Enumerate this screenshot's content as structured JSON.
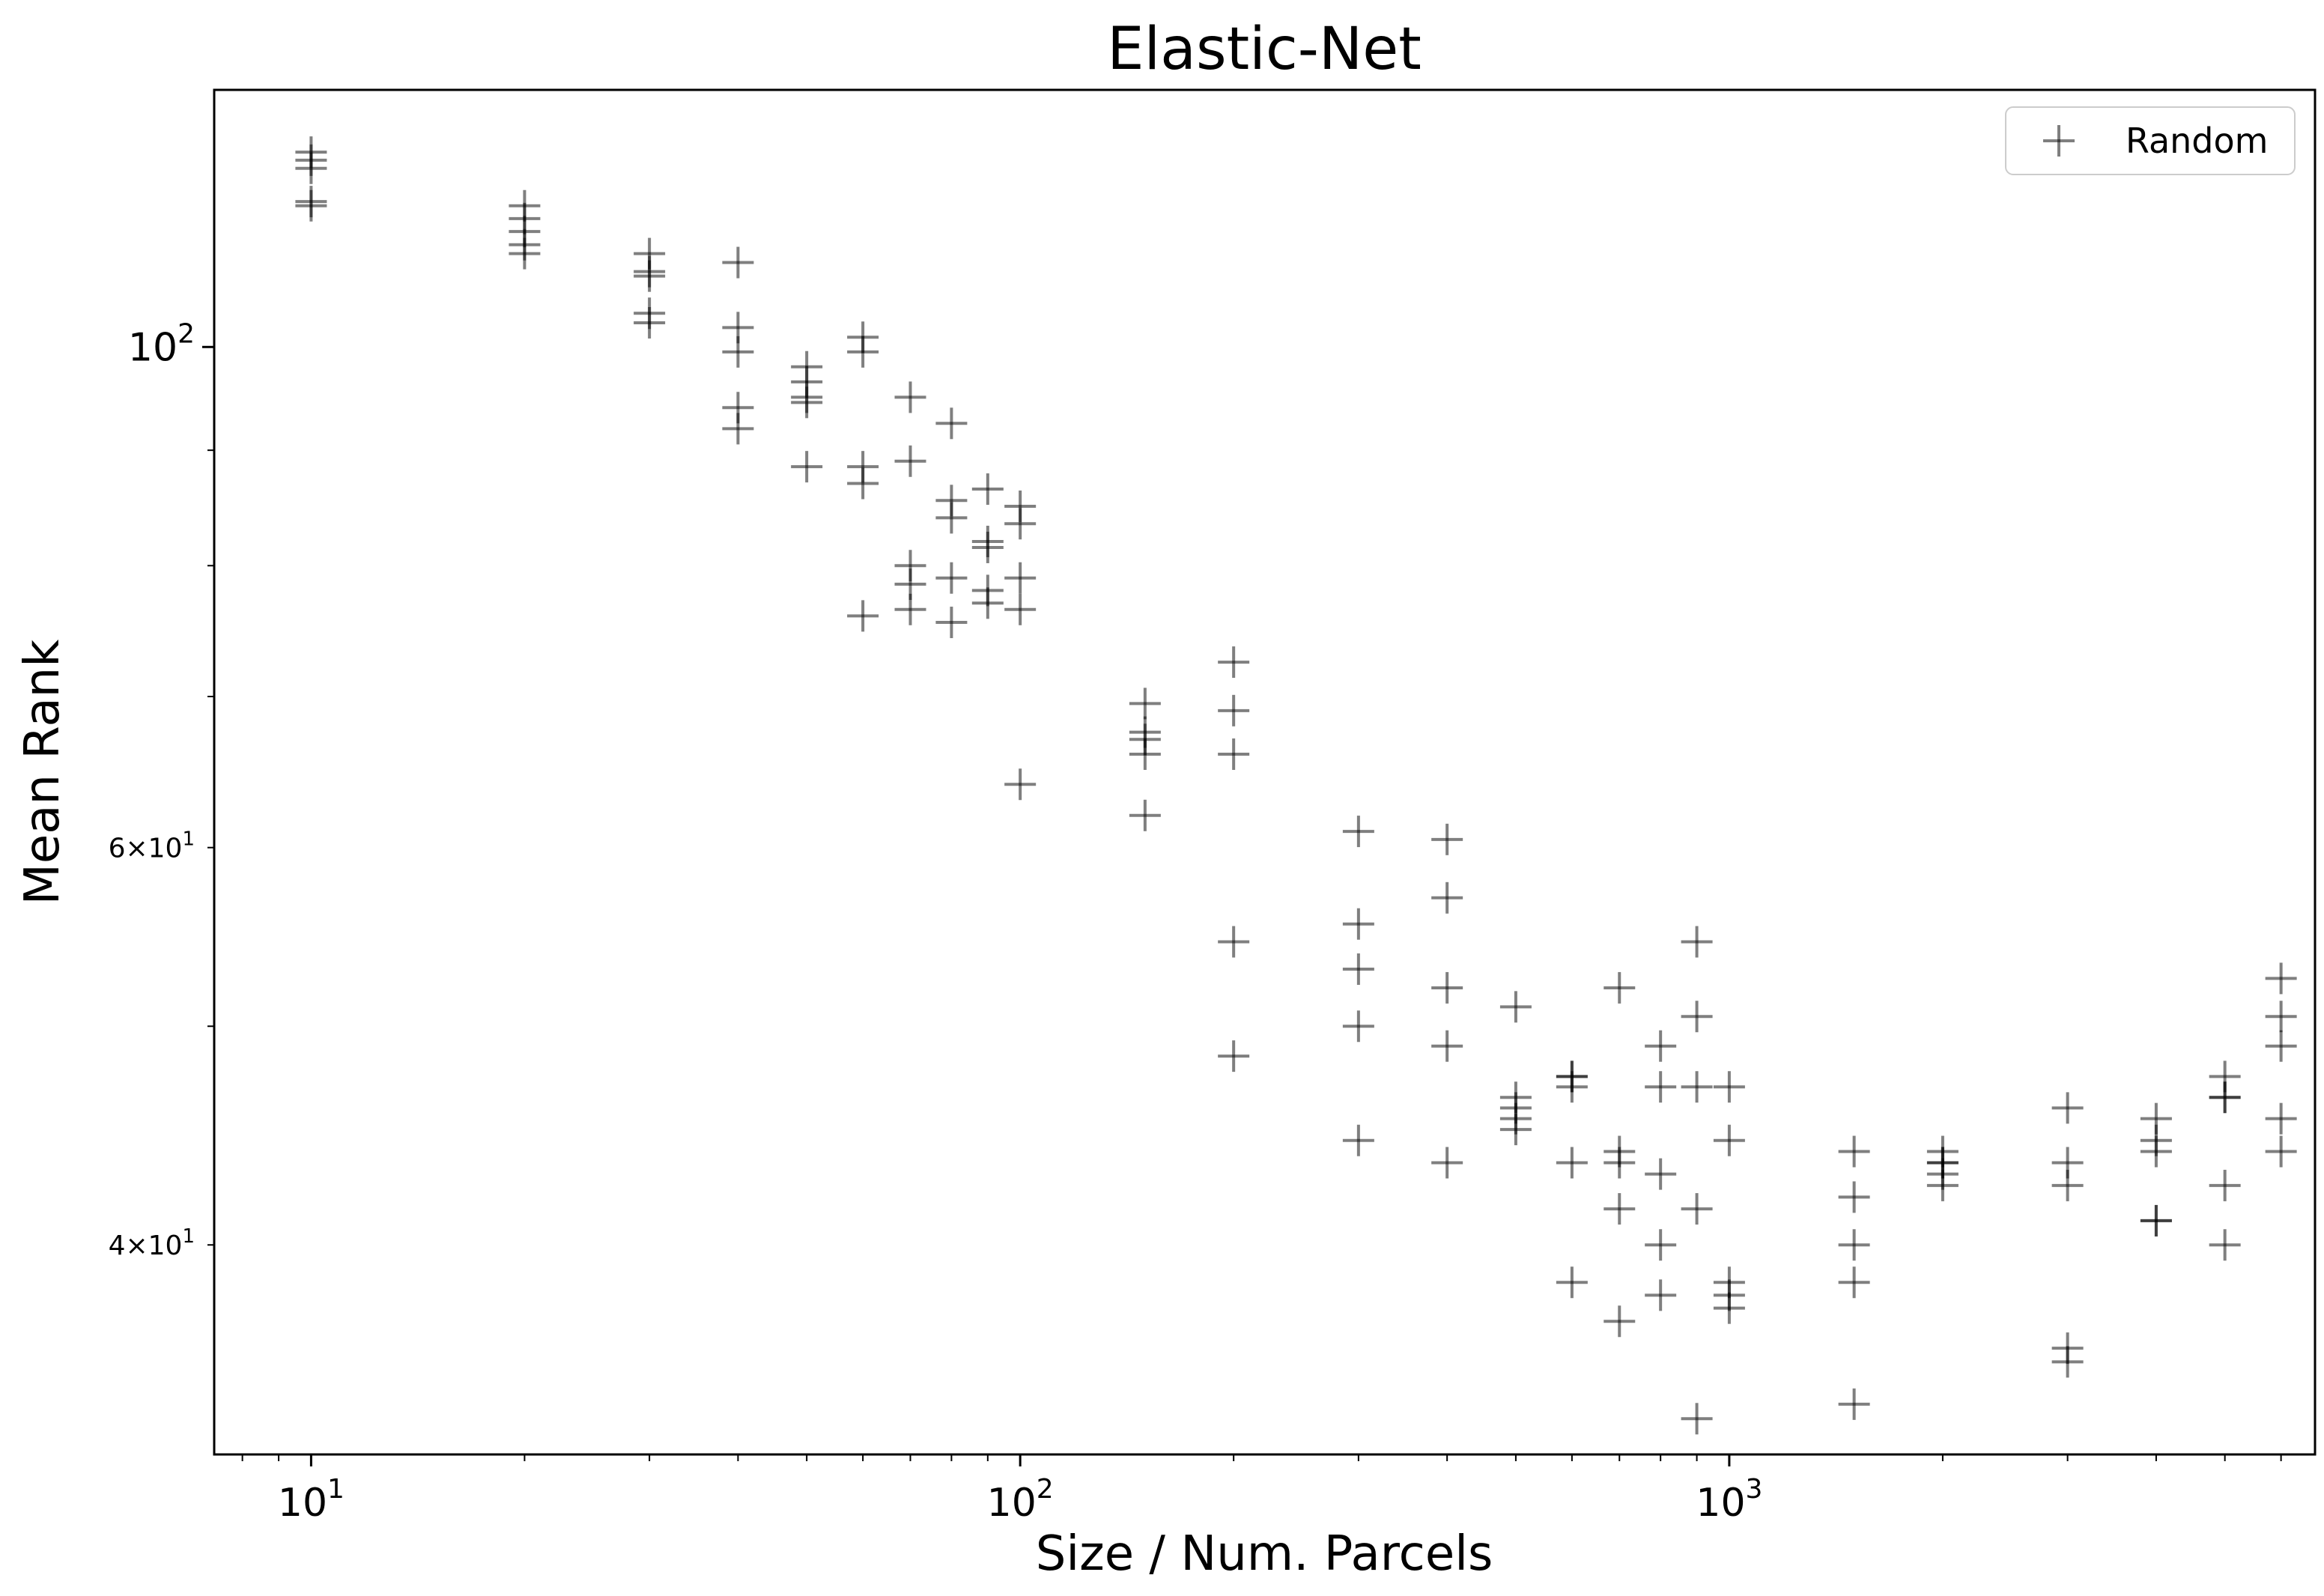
{
  "chart_data": {
    "type": "scatter",
    "title": "Elastic-Net",
    "xlabel": "Size / Num. Parcels",
    "ylabel": "Mean Rank",
    "xscale": "log",
    "yscale": "log",
    "xlim": [
      7.3,
      6700
    ],
    "ylim": [
      32.3,
      130
    ],
    "grid": false,
    "legend_position": "upper right",
    "x_ticks": [
      {
        "value": 10,
        "base": "10",
        "exp": "1"
      },
      {
        "value": 100,
        "base": "10",
        "exp": "2"
      },
      {
        "value": 1000,
        "base": "10",
        "exp": "3"
      }
    ],
    "y_ticks": [
      {
        "value": 100,
        "mantissa": "",
        "base": "10",
        "exp": "2"
      },
      {
        "value": 60,
        "mantissa": "6×",
        "base": "10",
        "exp": "1"
      },
      {
        "value": 40,
        "mantissa": "4×",
        "base": "10",
        "exp": "1"
      }
    ],
    "marker": "+",
    "color": "#000000",
    "opacity": 0.5,
    "series": [
      {
        "name": "Random",
        "points": [
          [
            10,
            122
          ],
          [
            10,
            121
          ],
          [
            10,
            120
          ],
          [
            10,
            116
          ],
          [
            10,
            115.5
          ],
          [
            20,
            115.5
          ],
          [
            20,
            114
          ],
          [
            20,
            112.5
          ],
          [
            20,
            111
          ],
          [
            20,
            110
          ],
          [
            30,
            110
          ],
          [
            30,
            108
          ],
          [
            30,
            107.5
          ],
          [
            30,
            103.5
          ],
          [
            30,
            102.5
          ],
          [
            40,
            109
          ],
          [
            40,
            102
          ],
          [
            40,
            99.5
          ],
          [
            40,
            94
          ],
          [
            40,
            92
          ],
          [
            50,
            98
          ],
          [
            50,
            96.5
          ],
          [
            50,
            95
          ],
          [
            50,
            94.5
          ],
          [
            50,
            88.5
          ],
          [
            60,
            101
          ],
          [
            60,
            99.5
          ],
          [
            60,
            88.5
          ],
          [
            60,
            87
          ],
          [
            60,
            76
          ],
          [
            70,
            95
          ],
          [
            70,
            89
          ],
          [
            70,
            80
          ],
          [
            70,
            78.5
          ],
          [
            70,
            76.5
          ],
          [
            80,
            92.5
          ],
          [
            80,
            85.5
          ],
          [
            80,
            84
          ],
          [
            80,
            79
          ],
          [
            80,
            75.5
          ],
          [
            90,
            86.5
          ],
          [
            90,
            82
          ],
          [
            90,
            81.5
          ],
          [
            90,
            78
          ],
          [
            90,
            77
          ],
          [
            100,
            85
          ],
          [
            100,
            83.5
          ],
          [
            100,
            79
          ],
          [
            100,
            76.5
          ],
          [
            100,
            64
          ],
          [
            150,
            69.5
          ],
          [
            150,
            67.5
          ],
          [
            150,
            67
          ],
          [
            150,
            66
          ],
          [
            150,
            62
          ],
          [
            200,
            72.5
          ],
          [
            200,
            69
          ],
          [
            200,
            66
          ],
          [
            200,
            54.5
          ],
          [
            200,
            48.5
          ],
          [
            300,
            61
          ],
          [
            300,
            55.5
          ],
          [
            300,
            53
          ],
          [
            300,
            50
          ],
          [
            300,
            44.5
          ],
          [
            400,
            60.5
          ],
          [
            400,
            57
          ],
          [
            400,
            52
          ],
          [
            400,
            49
          ],
          [
            400,
            43.5
          ],
          [
            500,
            51
          ],
          [
            500,
            46.5
          ],
          [
            500,
            46
          ],
          [
            500,
            45.5
          ],
          [
            500,
            45
          ],
          [
            600,
            47.5
          ],
          [
            600,
            47.5
          ],
          [
            600,
            47
          ],
          [
            600,
            43.5
          ],
          [
            600,
            38.5
          ],
          [
            700,
            52
          ],
          [
            700,
            44
          ],
          [
            700,
            43.5
          ],
          [
            700,
            41.5
          ],
          [
            700,
            37
          ],
          [
            800,
            49
          ],
          [
            800,
            47
          ],
          [
            800,
            43
          ],
          [
            800,
            40
          ],
          [
            800,
            38
          ],
          [
            900,
            54.5
          ],
          [
            900,
            50.5
          ],
          [
            900,
            47
          ],
          [
            900,
            41.5
          ],
          [
            900,
            33.5
          ],
          [
            1000,
            47
          ],
          [
            1000,
            44.5
          ],
          [
            1000,
            38.5
          ],
          [
            1000,
            38
          ],
          [
            1000,
            37.5
          ],
          [
            1500,
            44
          ],
          [
            1500,
            42
          ],
          [
            1500,
            40
          ],
          [
            1500,
            38.5
          ],
          [
            1500,
            34
          ],
          [
            2000,
            44
          ],
          [
            2000,
            43.5
          ],
          [
            2000,
            43.5
          ],
          [
            2000,
            43
          ],
          [
            2000,
            42.5
          ],
          [
            3000,
            46
          ],
          [
            3000,
            43.5
          ],
          [
            3000,
            42.5
          ],
          [
            3000,
            36
          ],
          [
            3000,
            35.5
          ],
          [
            4000,
            45.5
          ],
          [
            4000,
            44.5
          ],
          [
            4000,
            44
          ],
          [
            4000,
            41
          ],
          [
            4000,
            41
          ],
          [
            5000,
            47.5
          ],
          [
            5000,
            46.5
          ],
          [
            5000,
            46.5
          ],
          [
            5000,
            42.5
          ],
          [
            5000,
            40
          ],
          [
            6000,
            52.5
          ],
          [
            6000,
            50.5
          ],
          [
            6000,
            49
          ],
          [
            6000,
            45.5
          ],
          [
            6000,
            44
          ]
        ]
      }
    ]
  }
}
